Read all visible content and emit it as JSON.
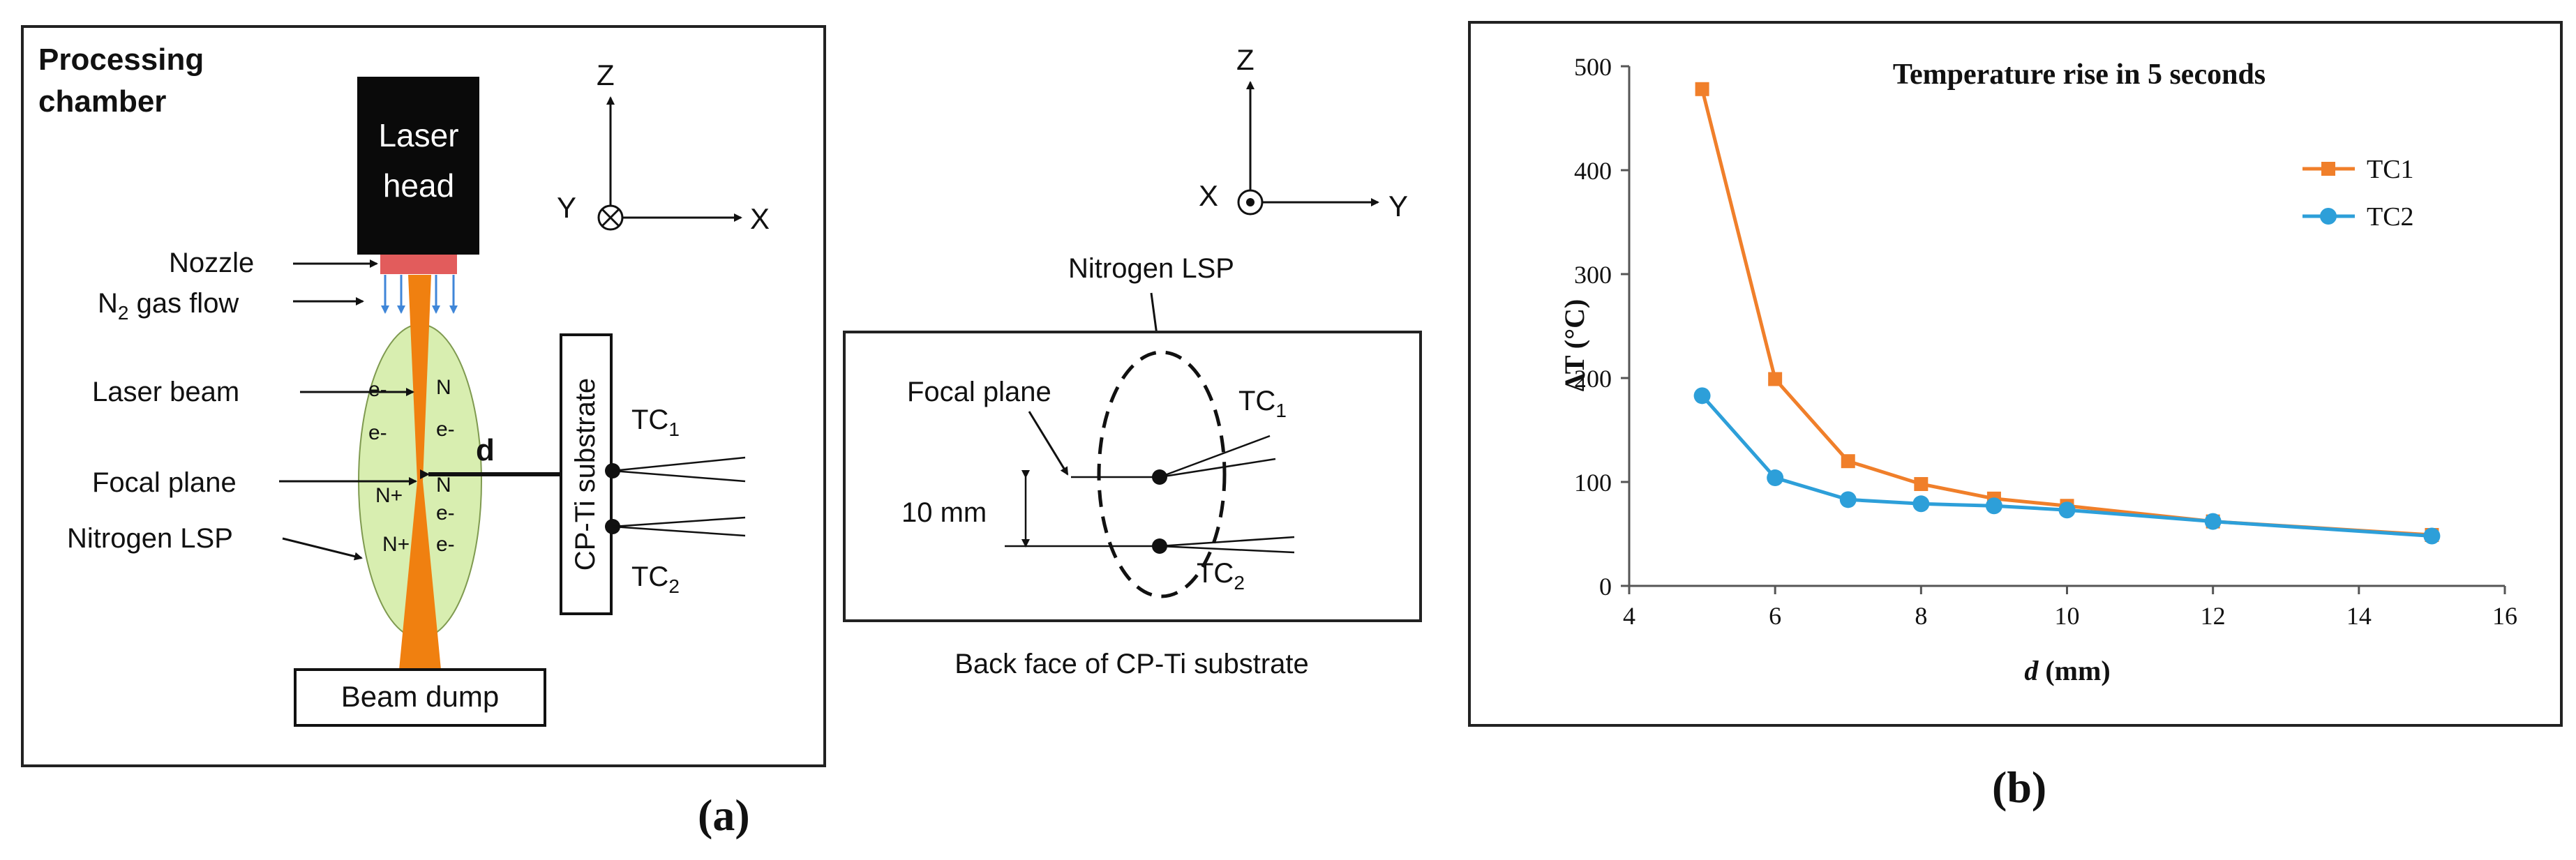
{
  "panel_a": {
    "chamber_title_line1": "Processing",
    "chamber_title_line2": "chamber",
    "laser_head_line1": "Laser",
    "laser_head_line2": "head",
    "nozzle": "Nozzle",
    "gas_flow": "N2 gas flow",
    "laser_beam": "Laser beam",
    "focal_plane": "Focal plane",
    "nitrogen_lsp": "Nitrogen LSP",
    "distance": "d",
    "substrate": "CP-Ti substrate",
    "tc1": "TC1",
    "tc2": "TC2",
    "beam_dump": "Beam dump",
    "plasma_species": [
      "e-",
      "e-",
      "N",
      "e-",
      "N+",
      "N+",
      "e-",
      "N",
      "e-"
    ],
    "axes": {
      "z": "Z",
      "y": "Y",
      "x": "X"
    },
    "caption": "(a)"
  },
  "panel_back": {
    "axes": {
      "z": "Z",
      "x": "X",
      "y": "Y"
    },
    "nitrogen_lsp": "Nitrogen LSP",
    "focal_plane": "Focal plane",
    "spacing": "10 mm",
    "tc1": "TC1",
    "tc2": "TC2",
    "caption": "Back face of CP-Ti substrate"
  },
  "panel_b": {
    "caption": "(b)"
  },
  "colors": {
    "tc1": "#f07f2a",
    "tc2": "#2d9fd9",
    "plasma": "#d8eeb0",
    "nozzle": "#e25c5c",
    "beam": "#f08010",
    "gas": "#3f86d8"
  },
  "chart_data": {
    "type": "line",
    "title": "Temperature  rise in 5 seconds",
    "xlabel_var": "d",
    "xlabel_unit": "(mm)",
    "ylabel": "ΔT (°C)",
    "xlim": [
      4,
      16
    ],
    "ylim": [
      0,
      500
    ],
    "xticks": [
      4,
      6,
      8,
      10,
      12,
      14,
      16
    ],
    "yticks": [
      0,
      100,
      200,
      300,
      400,
      500
    ],
    "series": [
      {
        "name": "TC1",
        "x": [
          5,
          6,
          7,
          8,
          9,
          10,
          12,
          15
        ],
        "y": [
          478,
          199,
          120,
          98,
          84,
          77,
          62,
          49
        ]
      },
      {
        "name": "TC2",
        "x": [
          5,
          6,
          7,
          8,
          9,
          10,
          12,
          15
        ],
        "y": [
          183,
          104,
          83,
          79,
          77,
          73,
          62,
          48
        ]
      }
    ]
  }
}
